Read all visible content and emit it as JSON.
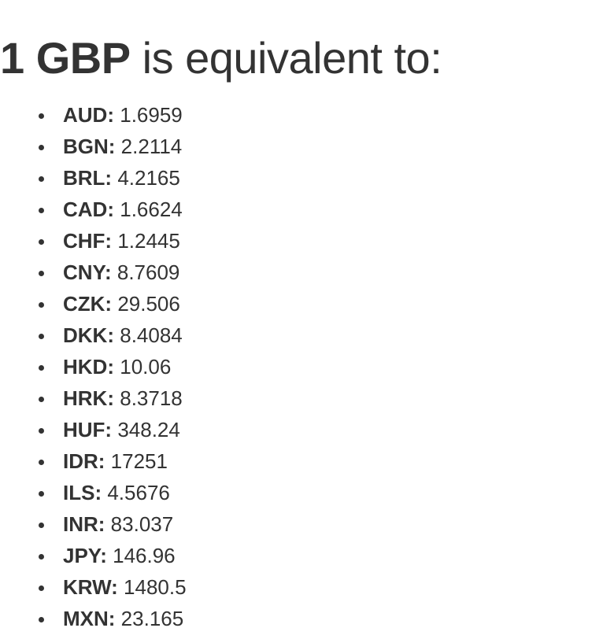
{
  "heading": {
    "strong": "1 GBP",
    "rest": " is equivalent to:"
  },
  "colors": {
    "text": "#333333",
    "background": "#ffffff"
  },
  "rates": [
    {
      "code": "AUD:",
      "value": "1.6959"
    },
    {
      "code": "BGN:",
      "value": "2.2114"
    },
    {
      "code": "BRL:",
      "value": "4.2165"
    },
    {
      "code": "CAD:",
      "value": "1.6624"
    },
    {
      "code": "CHF:",
      "value": "1.2445"
    },
    {
      "code": "CNY:",
      "value": "8.7609"
    },
    {
      "code": "CZK:",
      "value": "29.506"
    },
    {
      "code": "DKK:",
      "value": "8.4084"
    },
    {
      "code": "HKD:",
      "value": "10.06"
    },
    {
      "code": "HRK:",
      "value": "8.3718"
    },
    {
      "code": "HUF:",
      "value": "348.24"
    },
    {
      "code": "IDR:",
      "value": "17251"
    },
    {
      "code": "ILS:",
      "value": "4.5676"
    },
    {
      "code": "INR:",
      "value": "83.037"
    },
    {
      "code": "JPY:",
      "value": "146.96"
    },
    {
      "code": "KRW:",
      "value": "1480.5"
    },
    {
      "code": "MXN:",
      "value": "23.165"
    }
  ]
}
